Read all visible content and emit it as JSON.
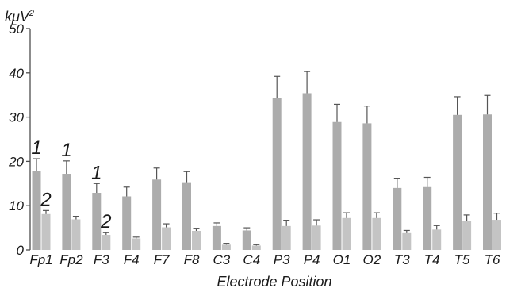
{
  "chart_data": {
    "type": "bar",
    "ylabel": "kμV",
    "ylabel_superscript": "2",
    "xlabel": "Electrode Position",
    "ylim": [
      0,
      50
    ],
    "yticks": [
      "0",
      "10",
      "20",
      "30",
      "40",
      "50"
    ],
    "categories": [
      "Fp1",
      "Fp2",
      "F3",
      "F4",
      "F7",
      "F8",
      "C3",
      "C4",
      "P3",
      "P4",
      "O1",
      "O2",
      "T3",
      "T4",
      "T5",
      "T6"
    ],
    "series": [
      {
        "values": [
          17.8,
          17.2,
          12.9,
          12.1,
          15.9,
          15.3,
          5.4,
          4.4,
          34.3,
          35.4,
          28.9,
          28.6,
          14.0,
          14.2,
          30.5,
          30.6
        ],
        "errors": [
          2.8,
          2.9,
          2.1,
          2.1,
          2.6,
          2.4,
          0.7,
          0.6,
          4.9,
          4.9,
          4.0,
          3.9,
          2.2,
          2.2,
          4.1,
          4.3
        ],
        "color": "#acacac"
      },
      {
        "values": [
          8.1,
          6.9,
          3.4,
          2.6,
          5.1,
          4.3,
          1.2,
          1.0,
          5.4,
          5.5,
          7.2,
          7.2,
          3.8,
          4.6,
          6.5,
          6.8
        ],
        "errors": [
          0.8,
          0.7,
          0.5,
          0.3,
          0.8,
          0.6,
          0.3,
          0.2,
          1.3,
          1.3,
          1.2,
          1.2,
          0.6,
          0.9,
          1.4,
          1.5
        ],
        "color": "#c4c4c4"
      }
    ],
    "annotations": [
      {
        "text": "1",
        "category": "Fp1",
        "series": 0
      },
      {
        "text": "2",
        "category": "Fp1",
        "series": 1
      },
      {
        "text": "1",
        "category": "Fp2",
        "series": 0
      },
      {
        "text": "1",
        "category": "F3",
        "series": 0
      },
      {
        "text": "2",
        "category": "F3",
        "series": 1
      }
    ],
    "axis_color": "#4d4d4d",
    "errorbar_color": "#555555",
    "grid": false
  }
}
